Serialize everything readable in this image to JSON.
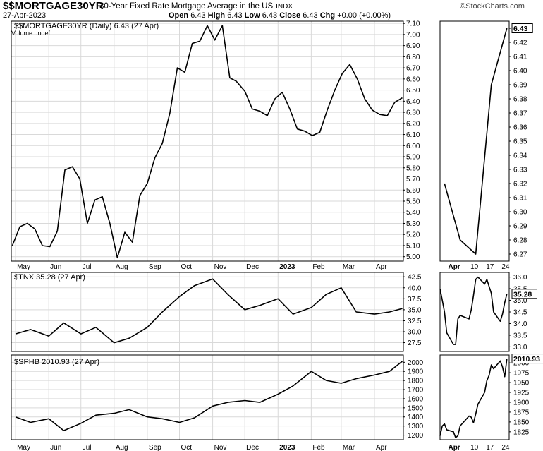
{
  "header": {
    "symbol": "$$MORTGAGE30YR",
    "description": "30-Year Fixed Rate Mortgage Average in the US",
    "exchange": "INDX",
    "date": "27-Apr-2023",
    "watermark": "StockCharts.com",
    "quote": {
      "open_label": "Open",
      "open": "6.43",
      "high_label": "High",
      "high": "6.43",
      "low_label": "Low",
      "low": "6.43",
      "close_label": "Close",
      "close": "6.43",
      "chg_label": "Chg",
      "chg": "+0.00 (+0.00%)"
    }
  },
  "colors": {
    "line": "#000000",
    "grid": "#d9d9d9",
    "frame": "#000000",
    "tag_bg": "#ffffff"
  },
  "chart_data": [
    {
      "type": "line",
      "title": "$$MORTGAGE30YR (Daily) 6.43 (27 Apr)",
      "subtitle": "Volume undef",
      "x_tick_labels": [
        "May",
        "Jun",
        "Jul",
        "Aug",
        "Sep",
        "Oct",
        "Nov",
        "Dec",
        "2023",
        "Feb",
        "Mar",
        "Apr"
      ],
      "y_tick_labels": [
        "7.10",
        "7.00",
        "6.90",
        "6.80",
        "6.70",
        "6.60",
        "6.50",
        "6.40",
        "6.30",
        "6.20",
        "6.10",
        "6.00",
        "5.90",
        "5.80",
        "5.70",
        "5.60",
        "5.50",
        "5.40",
        "5.30",
        "5.20",
        "5.10",
        "5.00"
      ],
      "ylim": [
        4.96,
        7.12
      ],
      "grid": true,
      "y_axis": "right",
      "series": [
        {
          "x": [
            "2022-04-28",
            "2022-05-05",
            "2022-05-12",
            "2022-05-19",
            "2022-05-26",
            "2022-06-02",
            "2022-06-09",
            "2022-06-16",
            "2022-06-23",
            "2022-06-30",
            "2022-07-07",
            "2022-07-14",
            "2022-07-21",
            "2022-07-28",
            "2022-08-04",
            "2022-08-11",
            "2022-08-18",
            "2022-08-25",
            "2022-09-01",
            "2022-09-08",
            "2022-09-15",
            "2022-09-22",
            "2022-09-29",
            "2022-10-06",
            "2022-10-13",
            "2022-10-20",
            "2022-10-27",
            "2022-11-03",
            "2022-11-10",
            "2022-11-17",
            "2022-11-23",
            "2022-12-01",
            "2022-12-08",
            "2022-12-15",
            "2022-12-22",
            "2022-12-29",
            "2023-01-05",
            "2023-01-12",
            "2023-01-19",
            "2023-01-26",
            "2023-02-02",
            "2023-02-09",
            "2023-02-16",
            "2023-02-23",
            "2023-03-02",
            "2023-03-09",
            "2023-03-16",
            "2023-03-23",
            "2023-03-30",
            "2023-04-06",
            "2023-04-13",
            "2023-04-20",
            "2023-04-27"
          ],
          "values": [
            5.1,
            5.27,
            5.3,
            5.25,
            5.1,
            5.09,
            5.23,
            5.78,
            5.81,
            5.7,
            5.3,
            5.51,
            5.54,
            5.3,
            4.99,
            5.22,
            5.13,
            5.55,
            5.66,
            5.89,
            6.02,
            6.29,
            6.7,
            6.66,
            6.92,
            6.94,
            7.08,
            6.95,
            7.08,
            6.61,
            6.58,
            6.49,
            6.33,
            6.31,
            6.27,
            6.42,
            6.48,
            6.33,
            6.15,
            6.13,
            6.09,
            6.12,
            6.32,
            6.5,
            6.65,
            6.73,
            6.6,
            6.42,
            6.32,
            6.28,
            6.27,
            6.39,
            6.43
          ]
        }
      ]
    },
    {
      "type": "line",
      "title": "",
      "x_tick_labels": [
        "Apr",
        "10",
        "17",
        "24"
      ],
      "y_tick_labels": [
        "6.43",
        "6.42",
        "6.41",
        "6.40",
        "6.39",
        "6.38",
        "6.37",
        "6.36",
        "6.35",
        "6.34",
        "6.33",
        "6.32",
        "6.31",
        "6.30",
        "6.29",
        "6.28",
        "6.27"
      ],
      "ylim": [
        6.265,
        6.435
      ],
      "grid": false,
      "last_value_tag": "6.43",
      "series": [
        {
          "x": [
            "2023-03-30",
            "2023-04-06",
            "2023-04-13",
            "2023-04-20",
            "2023-04-27"
          ],
          "values": [
            6.32,
            6.28,
            6.27,
            6.39,
            6.43
          ]
        }
      ]
    },
    {
      "type": "line",
      "title": "$TNX 35.28 (27 Apr)",
      "y_tick_labels": [
        "42.5",
        "40.0",
        "37.5",
        "35.0",
        "32.5",
        "30.0",
        "27.5"
      ],
      "ylim": [
        25.5,
        43.5
      ],
      "grid": true,
      "series": [
        {
          "x": [
            "2022-05",
            "2022-05-15",
            "2022-06",
            "2022-06-15",
            "2022-07",
            "2022-07-15",
            "2022-08",
            "2022-08-15",
            "2022-09",
            "2022-09-15",
            "2022-10",
            "2022-10-15",
            "2022-11",
            "2022-11-15",
            "2022-12",
            "2022-12-15",
            "2023-01",
            "2023-01-15",
            "2023-02",
            "2023-02-15",
            "2023-03",
            "2023-03-15",
            "2023-04",
            "2023-04-15",
            "2023-04-27"
          ],
          "values": [
            29.5,
            30.5,
            29.0,
            32.0,
            29.5,
            31.0,
            27.5,
            28.5,
            31.0,
            34.5,
            38.0,
            40.5,
            42.0,
            38.5,
            35.0,
            36.0,
            37.5,
            34.0,
            35.5,
            38.5,
            40.0,
            34.5,
            34.0,
            34.5,
            35.28
          ]
        }
      ]
    },
    {
      "type": "line",
      "title": "",
      "y_tick_labels": [
        "36.0",
        "35.5",
        "35.0",
        "34.5",
        "34.0",
        "33.5",
        "33.0"
      ],
      "ylim": [
        32.8,
        36.2
      ],
      "grid": false,
      "last_value_tag": "35.28",
      "series": [
        {
          "x": [
            "2023-03-28",
            "2023-03-29",
            "2023-03-30",
            "2023-03-31",
            "2023-04-03",
            "2023-04-04",
            "2023-04-05",
            "2023-04-06",
            "2023-04-10",
            "2023-04-11",
            "2023-04-12",
            "2023-04-13",
            "2023-04-14",
            "2023-04-17",
            "2023-04-18",
            "2023-04-19",
            "2023-04-20",
            "2023-04-21",
            "2023-04-24",
            "2023-04-25",
            "2023-04-26",
            "2023-04-27"
          ],
          "values": [
            35.5,
            35.0,
            34.5,
            33.6,
            33.1,
            33.1,
            34.2,
            34.35,
            34.2,
            34.6,
            35.2,
            35.9,
            36.0,
            35.7,
            35.9,
            35.6,
            35.3,
            34.5,
            34.1,
            34.4,
            34.9,
            35.28
          ]
        }
      ]
    },
    {
      "type": "line",
      "title": "$SPHB 2010.93 (27 Apr)",
      "y_tick_labels": [
        "2000",
        "1900",
        "1800",
        "1700",
        "1600",
        "1500",
        "1400",
        "1300",
        "1200"
      ],
      "ylim": [
        1150,
        2080
      ],
      "grid": true,
      "series": [
        {
          "x": [
            "2022-05",
            "2022-05-15",
            "2022-06",
            "2022-06-15",
            "2022-07",
            "2022-07-15",
            "2022-08",
            "2022-08-15",
            "2022-09",
            "2022-09-15",
            "2022-10",
            "2022-10-15",
            "2022-11",
            "2022-11-15",
            "2022-12",
            "2022-12-15",
            "2023-01",
            "2023-01-15",
            "2023-02",
            "2023-02-15",
            "2023-03",
            "2023-03-15",
            "2023-04",
            "2023-04-15",
            "2023-04-27"
          ],
          "values": [
            1400,
            1340,
            1380,
            1250,
            1330,
            1420,
            1440,
            1480,
            1400,
            1380,
            1340,
            1390,
            1520,
            1560,
            1580,
            1560,
            1650,
            1740,
            1900,
            1800,
            1770,
            1820,
            1860,
            1900,
            2010.93
          ]
        }
      ]
    },
    {
      "type": "line",
      "title": "",
      "y_tick_labels": [
        "2000",
        "1975",
        "1950",
        "1925",
        "1900",
        "1875",
        "1850",
        "1825"
      ],
      "ylim": [
        1805,
        2020
      ],
      "grid": false,
      "last_value_tag": "2010.93",
      "series": [
        {
          "x": [
            "2023-03-28",
            "2023-03-29",
            "2023-03-30",
            "2023-03-31",
            "2023-04-03",
            "2023-04-04",
            "2023-04-05",
            "2023-04-06",
            "2023-04-10",
            "2023-04-11",
            "2023-04-12",
            "2023-04-13",
            "2023-04-14",
            "2023-04-17",
            "2023-04-18",
            "2023-04-19",
            "2023-04-20",
            "2023-04-21",
            "2023-04-24",
            "2023-04-25",
            "2023-04-26",
            "2023-04-27"
          ],
          "values": [
            1815,
            1840,
            1845,
            1830,
            1825,
            1810,
            1815,
            1840,
            1865,
            1862,
            1848,
            1870,
            1895,
            1925,
            1955,
            1968,
            1995,
            1985,
            2005,
            1990,
            1965,
            2010.93
          ]
        }
      ]
    }
  ]
}
